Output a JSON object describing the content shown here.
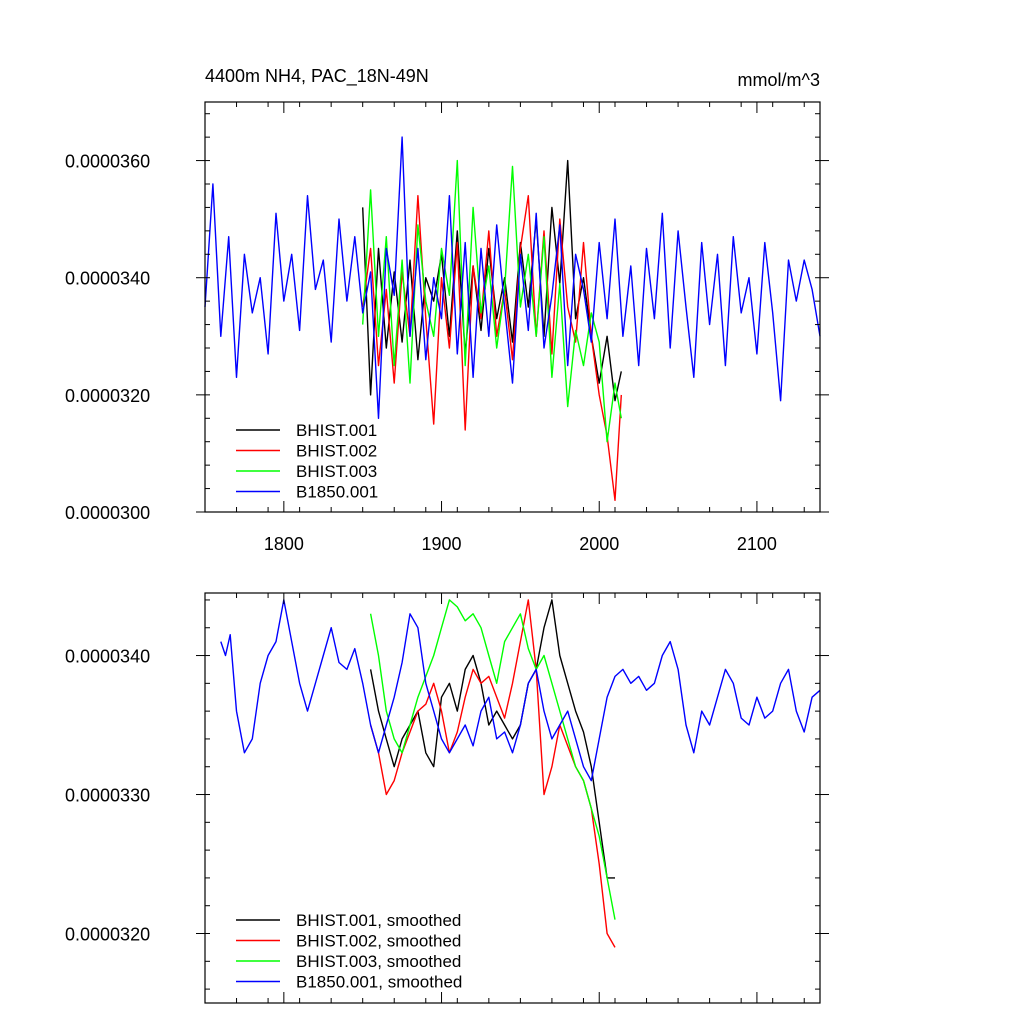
{
  "colors": {
    "black": "#000000",
    "red": "#ff0000",
    "green": "#00ff00",
    "blue": "#0000ff"
  },
  "chart_data": [
    {
      "type": "line",
      "title": "4400m NH4, PAC_18N-49N",
      "units": "mmol/m^3",
      "xlim": [
        1750,
        2140
      ],
      "ylim": [
        3e-05,
        3.7e-05
      ],
      "xticks": [
        1800,
        1900,
        2000,
        2100
      ],
      "xtick_labels": [
        "1800",
        "1900",
        "2000",
        "2100"
      ],
      "yticks": [
        3e-05,
        3.2e-05,
        3.4e-05,
        3.6e-05
      ],
      "ytick_labels": [
        "0.0000300",
        "0.0000320",
        "0.0000340",
        "0.0000360"
      ],
      "legend_position": "lower-left",
      "series": [
        {
          "name": "BHIST.001",
          "color": "#000000",
          "x": [
            1850,
            1855,
            1860,
            1865,
            1870,
            1875,
            1880,
            1885,
            1890,
            1895,
            1900,
            1905,
            1910,
            1915,
            1920,
            1925,
            1930,
            1935,
            1940,
            1945,
            1950,
            1955,
            1960,
            1965,
            1970,
            1975,
            1980,
            1985,
            1990,
            1995,
            2000,
            2005,
            2010,
            2014
          ],
          "y": [
            3.52e-05,
            3.2e-05,
            3.45e-05,
            3.28e-05,
            3.41e-05,
            3.29e-05,
            3.43e-05,
            3.26e-05,
            3.4e-05,
            3.36e-05,
            3.44e-05,
            3.3e-05,
            3.48e-05,
            3.27e-05,
            3.42e-05,
            3.31e-05,
            3.45e-05,
            3.33e-05,
            3.4e-05,
            3.29e-05,
            3.46e-05,
            3.35e-05,
            3.5e-05,
            3.3e-05,
            3.52e-05,
            3.39e-05,
            3.6e-05,
            3.33e-05,
            3.4e-05,
            3.3e-05,
            3.22e-05,
            3.3e-05,
            3.19e-05,
            3.24e-05
          ]
        },
        {
          "name": "BHIST.002",
          "color": "#ff0000",
          "x": [
            1850,
            1855,
            1860,
            1865,
            1870,
            1875,
            1880,
            1885,
            1890,
            1895,
            1900,
            1905,
            1910,
            1915,
            1920,
            1925,
            1930,
            1935,
            1940,
            1945,
            1950,
            1955,
            1960,
            1965,
            1970,
            1975,
            1980,
            1985,
            1990,
            1995,
            2000,
            2005,
            2010,
            2014
          ],
          "y": [
            3.35e-05,
            3.45e-05,
            3.25e-05,
            3.38e-05,
            3.22e-05,
            3.41e-05,
            3.3e-05,
            3.54e-05,
            3.33e-05,
            3.15e-05,
            3.4e-05,
            3.28e-05,
            3.46e-05,
            3.14e-05,
            3.42e-05,
            3.33e-05,
            3.48e-05,
            3.3e-05,
            3.38e-05,
            3.26e-05,
            3.45e-05,
            3.54e-05,
            3.3e-05,
            3.48e-05,
            3.27e-05,
            3.5e-05,
            3.35e-05,
            3.29e-05,
            3.46e-05,
            3.3e-05,
            3.2e-05,
            3.13e-05,
            3.02e-05,
            3.2e-05
          ]
        },
        {
          "name": "BHIST.003",
          "color": "#00ff00",
          "x": [
            1850,
            1855,
            1860,
            1865,
            1870,
            1875,
            1880,
            1885,
            1890,
            1895,
            1900,
            1905,
            1910,
            1915,
            1920,
            1925,
            1930,
            1935,
            1940,
            1945,
            1950,
            1955,
            1960,
            1965,
            1970,
            1975,
            1980,
            1985,
            1990,
            1995,
            2000,
            2005,
            2010,
            2014
          ],
          "y": [
            3.32e-05,
            3.55e-05,
            3.3e-05,
            3.47e-05,
            3.25e-05,
            3.43e-05,
            3.22e-05,
            3.49e-05,
            3.36e-05,
            3.3e-05,
            3.45e-05,
            3.37e-05,
            3.6e-05,
            3.25e-05,
            3.52e-05,
            3.34e-05,
            3.42e-05,
            3.28e-05,
            3.38e-05,
            3.59e-05,
            3.35e-05,
            3.44e-05,
            3.3e-05,
            3.47e-05,
            3.23e-05,
            3.39e-05,
            3.18e-05,
            3.31e-05,
            3.25e-05,
            3.34e-05,
            3.29e-05,
            3.12e-05,
            3.22e-05,
            3.16e-05
          ]
        },
        {
          "name": "B1850.001",
          "color": "#0000ff",
          "x": [
            1750,
            1755,
            1760,
            1765,
            1770,
            1775,
            1780,
            1785,
            1790,
            1795,
            1800,
            1805,
            1810,
            1815,
            1820,
            1825,
            1830,
            1835,
            1840,
            1845,
            1850,
            1855,
            1860,
            1865,
            1870,
            1875,
            1880,
            1885,
            1890,
            1895,
            1900,
            1905,
            1910,
            1915,
            1920,
            1925,
            1930,
            1935,
            1940,
            1945,
            1950,
            1955,
            1960,
            1965,
            1970,
            1975,
            1980,
            1985,
            1990,
            1995,
            2000,
            2005,
            2010,
            2015,
            2020,
            2025,
            2030,
            2035,
            2040,
            2045,
            2050,
            2055,
            2060,
            2065,
            2070,
            2075,
            2080,
            2085,
            2090,
            2095,
            2100,
            2105,
            2110,
            2115,
            2120,
            2125,
            2130,
            2135,
            2140
          ],
          "y": [
            3.35e-05,
            3.56e-05,
            3.3e-05,
            3.47e-05,
            3.23e-05,
            3.44e-05,
            3.34e-05,
            3.4e-05,
            3.27e-05,
            3.51e-05,
            3.36e-05,
            3.44e-05,
            3.31e-05,
            3.54e-05,
            3.38e-05,
            3.43e-05,
            3.29e-05,
            3.5e-05,
            3.36e-05,
            3.47e-05,
            3.34e-05,
            3.41e-05,
            3.16e-05,
            3.45e-05,
            3.37e-05,
            3.64e-05,
            3.3e-05,
            3.45e-05,
            3.26e-05,
            3.4e-05,
            3.33e-05,
            3.54e-05,
            3.27e-05,
            3.46e-05,
            3.23e-05,
            3.45e-05,
            3.3e-05,
            3.49e-05,
            3.35e-05,
            3.22e-05,
            3.44e-05,
            3.31e-05,
            3.51e-05,
            3.28e-05,
            3.37e-05,
            3.49e-05,
            3.25e-05,
            3.44e-05,
            3.38e-05,
            3.29e-05,
            3.46e-05,
            3.33e-05,
            3.5e-05,
            3.3e-05,
            3.42e-05,
            3.25e-05,
            3.45e-05,
            3.33e-05,
            3.51e-05,
            3.28e-05,
            3.48e-05,
            3.35e-05,
            3.23e-05,
            3.46e-05,
            3.32e-05,
            3.44e-05,
            3.25e-05,
            3.47e-05,
            3.34e-05,
            3.4e-05,
            3.27e-05,
            3.46e-05,
            3.34e-05,
            3.19e-05,
            3.43e-05,
            3.36e-05,
            3.43e-05,
            3.38e-05,
            3.3e-05
          ]
        }
      ],
      "legend": [
        {
          "label": "BHIST.001",
          "color": "#000000"
        },
        {
          "label": "BHIST.002",
          "color": "#ff0000"
        },
        {
          "label": "BHIST.003",
          "color": "#00ff00"
        },
        {
          "label": "B1850.001",
          "color": "#0000ff"
        }
      ]
    },
    {
      "type": "line",
      "xlim": [
        1750,
        2140
      ],
      "ylim": [
        3.15e-05,
        3.445e-05
      ],
      "xticks": [
        1800,
        1900,
        2000,
        2100
      ],
      "yticks": [
        3.2e-05,
        3.3e-05,
        3.4e-05
      ],
      "ytick_labels": [
        "0.0000320",
        "0.0000330",
        "0.0000340"
      ],
      "legend_position": "lower-left",
      "series": [
        {
          "name": "BHIST.001, smoothed",
          "color": "#000000",
          "x": [
            1855,
            1860,
            1865,
            1870,
            1875,
            1880,
            1885,
            1890,
            1895,
            1900,
            1905,
            1910,
            1915,
            1920,
            1925,
            1930,
            1935,
            1940,
            1945,
            1950,
            1955,
            1960,
            1965,
            1970,
            1975,
            1980,
            1985,
            1990,
            1995,
            2000,
            2005,
            2010
          ],
          "y": [
            3.39e-05,
            3.36e-05,
            3.34e-05,
            3.32e-05,
            3.34e-05,
            3.35e-05,
            3.36e-05,
            3.33e-05,
            3.32e-05,
            3.37e-05,
            3.38e-05,
            3.36e-05,
            3.39e-05,
            3.4e-05,
            3.38e-05,
            3.35e-05,
            3.36e-05,
            3.35e-05,
            3.34e-05,
            3.35e-05,
            3.38e-05,
            3.39e-05,
            3.42e-05,
            3.44e-05,
            3.4e-05,
            3.38e-05,
            3.36e-05,
            3.345e-05,
            3.32e-05,
            3.28e-05,
            3.24e-05,
            3.24e-05
          ]
        },
        {
          "name": "BHIST.002, smoothed",
          "color": "#ff0000",
          "x": [
            1855,
            1860,
            1865,
            1870,
            1875,
            1880,
            1885,
            1890,
            1895,
            1900,
            1905,
            1910,
            1915,
            1920,
            1925,
            1930,
            1935,
            1940,
            1945,
            1950,
            1955,
            1960,
            1965,
            1970,
            1975,
            1980,
            1985,
            1990,
            1995,
            2000,
            2005,
            2010
          ],
          "y": [
            3.35e-05,
            3.33e-05,
            3.3e-05,
            3.31e-05,
            3.33e-05,
            3.345e-05,
            3.36e-05,
            3.365e-05,
            3.38e-05,
            3.36e-05,
            3.33e-05,
            3.345e-05,
            3.37e-05,
            3.39e-05,
            3.38e-05,
            3.385e-05,
            3.37e-05,
            3.355e-05,
            3.38e-05,
            3.41e-05,
            3.44e-05,
            3.39e-05,
            3.3e-05,
            3.32e-05,
            3.35e-05,
            3.335e-05,
            3.32e-05,
            3.31e-05,
            3.29e-05,
            3.25e-05,
            3.2e-05,
            3.19e-05
          ]
        },
        {
          "name": "BHIST.003, smoothed",
          "color": "#00ff00",
          "x": [
            1855,
            1860,
            1865,
            1870,
            1875,
            1880,
            1885,
            1890,
            1895,
            1900,
            1905,
            1910,
            1915,
            1920,
            1925,
            1930,
            1935,
            1940,
            1945,
            1950,
            1955,
            1960,
            1965,
            1970,
            1975,
            1980,
            1985,
            1990,
            1995,
            2000,
            2005,
            2010
          ],
          "y": [
            3.43e-05,
            3.4e-05,
            3.36e-05,
            3.34e-05,
            3.33e-05,
            3.35e-05,
            3.37e-05,
            3.385e-05,
            3.4e-05,
            3.42e-05,
            3.44e-05,
            3.435e-05,
            3.425e-05,
            3.43e-05,
            3.42e-05,
            3.4e-05,
            3.38e-05,
            3.41e-05,
            3.42e-05,
            3.43e-05,
            3.405e-05,
            3.39e-05,
            3.4e-05,
            3.38e-05,
            3.36e-05,
            3.34e-05,
            3.32e-05,
            3.31e-05,
            3.29e-05,
            3.27e-05,
            3.24e-05,
            3.21e-05
          ]
        },
        {
          "name": "B1850.001, smoothed",
          "color": "#0000ff",
          "x": [
            1760,
            1763,
            1766,
            1770,
            1775,
            1780,
            1785,
            1790,
            1795,
            1800,
            1805,
            1810,
            1815,
            1820,
            1825,
            1830,
            1835,
            1840,
            1845,
            1850,
            1855,
            1860,
            1865,
            1870,
            1875,
            1880,
            1885,
            1890,
            1895,
            1900,
            1905,
            1910,
            1915,
            1920,
            1925,
            1930,
            1935,
            1940,
            1945,
            1950,
            1955,
            1960,
            1965,
            1970,
            1975,
            1980,
            1985,
            1990,
            1995,
            2000,
            2005,
            2010,
            2015,
            2020,
            2025,
            2030,
            2035,
            2040,
            2045,
            2050,
            2055,
            2060,
            2065,
            2070,
            2075,
            2080,
            2085,
            2090,
            2095,
            2100,
            2105,
            2110,
            2115,
            2120,
            2125,
            2130,
            2135,
            2140
          ],
          "y": [
            3.41e-05,
            3.4e-05,
            3.415e-05,
            3.36e-05,
            3.33e-05,
            3.34e-05,
            3.38e-05,
            3.4e-05,
            3.41e-05,
            3.44e-05,
            3.41e-05,
            3.38e-05,
            3.36e-05,
            3.38e-05,
            3.4e-05,
            3.42e-05,
            3.395e-05,
            3.39e-05,
            3.405e-05,
            3.38e-05,
            3.35e-05,
            3.33e-05,
            3.35e-05,
            3.37e-05,
            3.395e-05,
            3.43e-05,
            3.42e-05,
            3.38e-05,
            3.36e-05,
            3.34e-05,
            3.33e-05,
            3.34e-05,
            3.35e-05,
            3.335e-05,
            3.36e-05,
            3.37e-05,
            3.34e-05,
            3.345e-05,
            3.33e-05,
            3.35e-05,
            3.38e-05,
            3.39e-05,
            3.36e-05,
            3.34e-05,
            3.35e-05,
            3.36e-05,
            3.34e-05,
            3.32e-05,
            3.31e-05,
            3.34e-05,
            3.37e-05,
            3.385e-05,
            3.39e-05,
            3.38e-05,
            3.385e-05,
            3.375e-05,
            3.38e-05,
            3.4e-05,
            3.41e-05,
            3.39e-05,
            3.35e-05,
            3.33e-05,
            3.36e-05,
            3.35e-05,
            3.37e-05,
            3.39e-05,
            3.38e-05,
            3.355e-05,
            3.35e-05,
            3.37e-05,
            3.355e-05,
            3.36e-05,
            3.38e-05,
            3.39e-05,
            3.36e-05,
            3.345e-05,
            3.37e-05,
            3.375e-05
          ]
        }
      ],
      "legend": [
        {
          "label": "BHIST.001, smoothed",
          "color": "#000000"
        },
        {
          "label": "BHIST.002, smoothed",
          "color": "#ff0000"
        },
        {
          "label": "BHIST.003, smoothed",
          "color": "#00ff00"
        },
        {
          "label": "B1850.001, smoothed",
          "color": "#0000ff"
        }
      ]
    }
  ]
}
